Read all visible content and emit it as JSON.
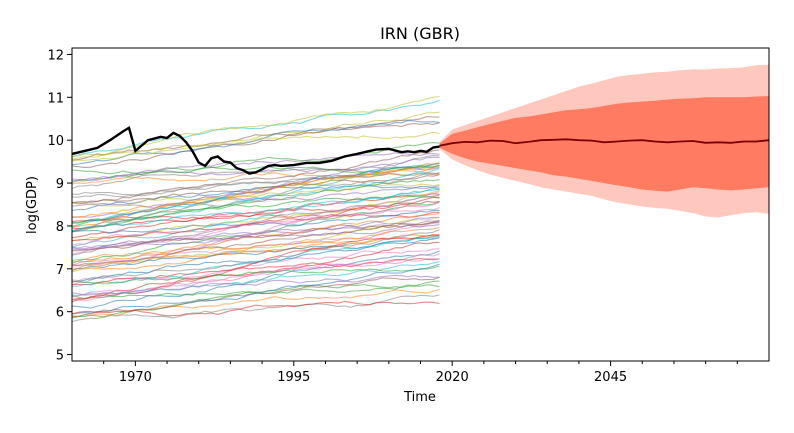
{
  "chart_data": {
    "type": "line",
    "title": "IRN (GBR)",
    "xlabel": "Time",
    "ylabel": "log(GDP)",
    "xlim": [
      1960,
      2070
    ],
    "ylim": [
      4.85,
      12.15
    ],
    "x_ticks": [
      1970,
      1995,
      2020,
      2045
    ],
    "y_ticks": [
      5,
      6,
      7,
      8,
      9,
      10,
      11,
      12
    ],
    "grid": false,
    "legend": "none",
    "colors": {
      "highlight": "#000000",
      "forecast_median": "#7a0000",
      "band_inner": "#ff7b62",
      "band_outer": "#ffc8bf"
    },
    "highlight_series": {
      "x": [
        1960,
        1962,
        1964,
        1966,
        1968,
        1969,
        1970,
        1972,
        1974,
        1975,
        1976,
        1977,
        1978,
        1979,
        1980,
        1981,
        1982,
        1983,
        1984,
        1985,
        1986,
        1987,
        1988,
        1989,
        1990,
        1991,
        1992,
        1993,
        1995,
        1997,
        1999,
        2001,
        2003,
        2005,
        2007,
        2008,
        2010,
        2012,
        2013,
        2014,
        2015,
        2016,
        2017,
        2018
      ],
      "y": [
        9.68,
        9.75,
        9.82,
        10.0,
        10.2,
        10.29,
        9.75,
        10.0,
        10.08,
        10.05,
        10.17,
        10.1,
        9.95,
        9.75,
        9.48,
        9.4,
        9.58,
        9.62,
        9.5,
        9.48,
        9.35,
        9.3,
        9.22,
        9.25,
        9.32,
        9.4,
        9.42,
        9.4,
        9.42,
        9.47,
        9.47,
        9.52,
        9.62,
        9.68,
        9.75,
        9.78,
        9.8,
        9.72,
        9.74,
        9.72,
        9.75,
        9.73,
        9.83,
        9.85
      ]
    },
    "forecast": {
      "x": [
        2018,
        2020,
        2022,
        2024,
        2026,
        2028,
        2030,
        2032,
        2034,
        2036,
        2038,
        2040,
        2042,
        2044,
        2046,
        2048,
        2050,
        2052,
        2054,
        2056,
        2058,
        2060,
        2062,
        2064,
        2066,
        2068,
        2070
      ],
      "median": [
        9.87,
        9.93,
        9.96,
        9.95,
        9.99,
        9.98,
        9.93,
        9.96,
        10.0,
        10.01,
        10.02,
        10.0,
        9.99,
        9.95,
        9.97,
        9.99,
        10.0,
        9.97,
        9.95,
        9.97,
        9.98,
        9.94,
        9.95,
        9.94,
        9.97,
        9.97,
        10.0
      ],
      "inner_low": [
        9.82,
        9.68,
        9.58,
        9.5,
        9.45,
        9.4,
        9.35,
        9.3,
        9.25,
        9.18,
        9.15,
        9.1,
        9.05,
        9.0,
        8.95,
        8.9,
        8.85,
        8.82,
        8.8,
        8.85,
        8.9,
        8.88,
        8.85,
        8.83,
        8.85,
        8.88,
        8.9
      ],
      "inner_high": [
        9.92,
        10.15,
        10.22,
        10.3,
        10.38,
        10.45,
        10.52,
        10.55,
        10.6,
        10.65,
        10.7,
        10.72,
        10.75,
        10.8,
        10.85,
        10.88,
        10.9,
        10.92,
        10.95,
        10.97,
        10.98,
        11.0,
        11.0,
        11.0,
        11.0,
        11.02,
        11.03
      ],
      "outer_low": [
        9.8,
        9.55,
        9.42,
        9.3,
        9.2,
        9.12,
        9.05,
        8.98,
        8.9,
        8.85,
        8.8,
        8.75,
        8.7,
        8.62,
        8.55,
        8.5,
        8.45,
        8.42,
        8.4,
        8.35,
        8.3,
        8.22,
        8.2,
        8.25,
        8.3,
        8.32,
        8.28
      ],
      "outer_high": [
        9.95,
        10.25,
        10.35,
        10.45,
        10.55,
        10.65,
        10.75,
        10.85,
        10.95,
        11.05,
        11.15,
        11.25,
        11.32,
        11.4,
        11.48,
        11.52,
        11.55,
        11.58,
        11.6,
        11.63,
        11.65,
        11.65,
        11.67,
        11.68,
        11.7,
        11.75,
        11.76
      ]
    },
    "background_series": {
      "x_range": [
        1960,
        2018
      ],
      "count": 75,
      "level_min": 5.7,
      "level_max": 10.4
    }
  }
}
